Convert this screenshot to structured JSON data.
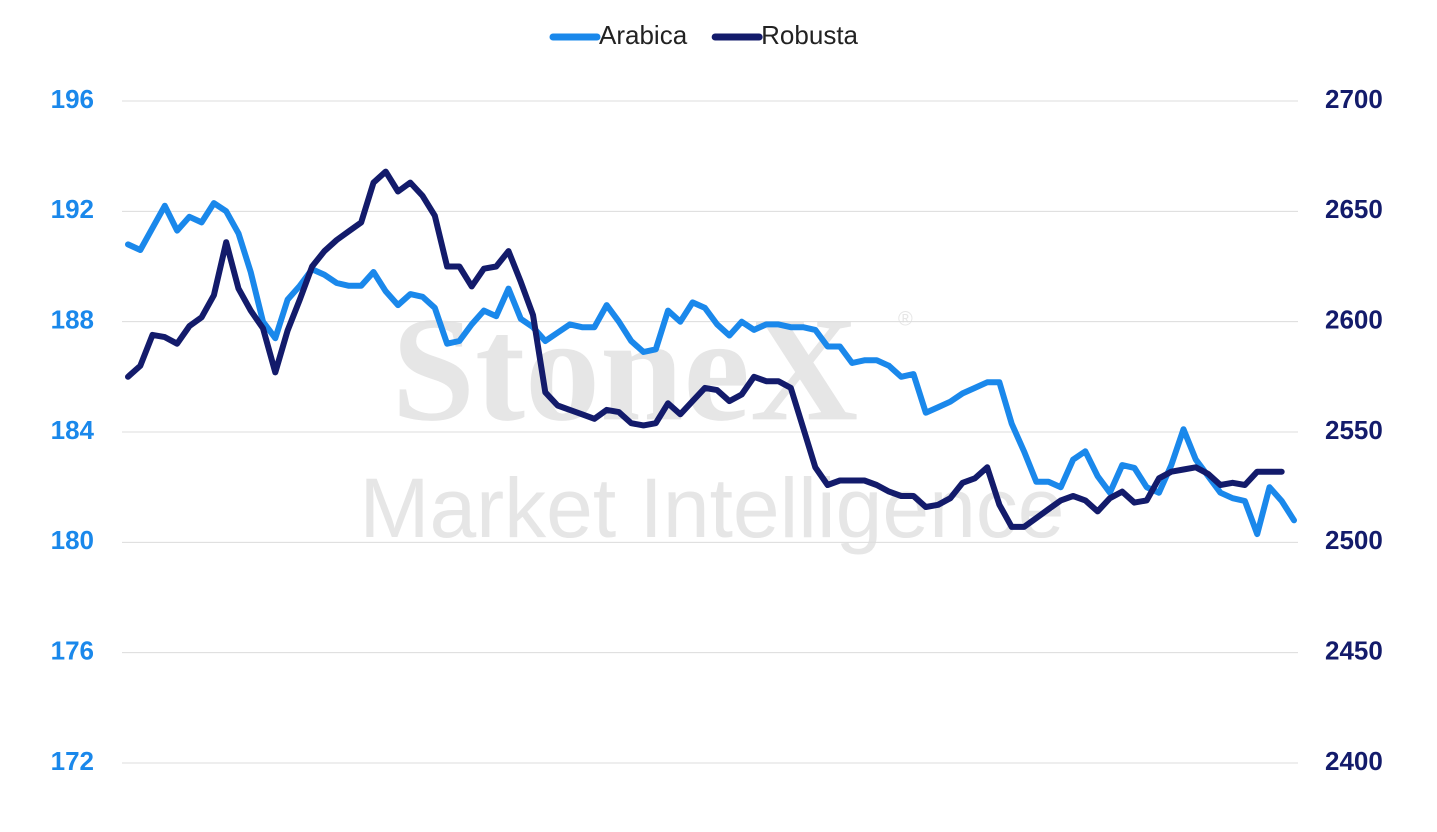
{
  "chart_data": {
    "type": "line",
    "watermark": {
      "brand": "StoneX",
      "mark": "®",
      "tagline": "Market Intelligence"
    },
    "series": [
      {
        "name": "Arabica",
        "color": "#1a88eb",
        "values": [
          190.8,
          190.6,
          191.4,
          192.2,
          191.3,
          191.8,
          191.6,
          192.3,
          192.0,
          191.2,
          189.8,
          188.0,
          187.4,
          188.8,
          189.3,
          189.9,
          189.7,
          189.4,
          189.3,
          189.3,
          189.8,
          189.1,
          188.6,
          189.0,
          188.9,
          188.5,
          187.2,
          187.3,
          187.9,
          188.4,
          188.2,
          189.2,
          188.1,
          187.8,
          187.3,
          187.6,
          187.9,
          187.8,
          187.8,
          188.6,
          188.0,
          187.3,
          186.9,
          187.0,
          188.4,
          188.0,
          188.7,
          188.5,
          187.9,
          187.5,
          188.0,
          187.7,
          187.9,
          187.9,
          187.8,
          187.8,
          187.7,
          187.1,
          187.1,
          186.5,
          186.6,
          186.6,
          186.4,
          186.0,
          186.1,
          184.7,
          184.9,
          185.1,
          185.4,
          185.6,
          185.8,
          185.8,
          184.3,
          183.3,
          182.2,
          182.2,
          182.0,
          183.0,
          183.3,
          182.4,
          181.8,
          182.8,
          182.7,
          182.0,
          181.8,
          182.8,
          184.1,
          183.0,
          182.4,
          181.8,
          181.6,
          181.5,
          180.3,
          182.0,
          181.5,
          180.8
        ]
      },
      {
        "name": "Robusta",
        "color": "#131b6b",
        "axis": "y2",
        "values": [
          2575,
          2580,
          2594,
          2593,
          2590,
          2598,
          2602,
          2612,
          2636,
          2615,
          2605,
          2597,
          2577,
          2596,
          2610,
          2625,
          2632,
          2637,
          2641,
          2645,
          2663,
          2668,
          2659,
          2663,
          2657,
          2648,
          2625,
          2625,
          2616,
          2624,
          2625,
          2632,
          2618,
          2603,
          2568,
          2562,
          2560,
          2558,
          2556,
          2560,
          2559,
          2554,
          2553,
          2554,
          2563,
          2558,
          2564,
          2570,
          2569,
          2564,
          2567,
          2575,
          2573,
          2573,
          2570,
          2552,
          2534,
          2526,
          2528,
          2528,
          2528,
          2526,
          2523,
          2521,
          2521,
          2516,
          2517,
          2520,
          2527,
          2529,
          2534,
          2517,
          2507,
          2507,
          2511,
          2515,
          2519,
          2521,
          2519,
          2514,
          2520,
          2523,
          2518,
          2519,
          2529,
          2532,
          2533,
          2534,
          2531,
          2526,
          2527,
          2526,
          2532,
          2532,
          2532,
          null
        ]
      }
    ],
    "ylim": [
      172,
      196
    ],
    "yticks": [
      172,
      176,
      180,
      184,
      188,
      192,
      196
    ],
    "y2lim": [
      2400,
      2700
    ],
    "y2ticks": [
      2400,
      2450,
      2500,
      2550,
      2600,
      2650,
      2700
    ],
    "grid": true,
    "legend": "top"
  }
}
